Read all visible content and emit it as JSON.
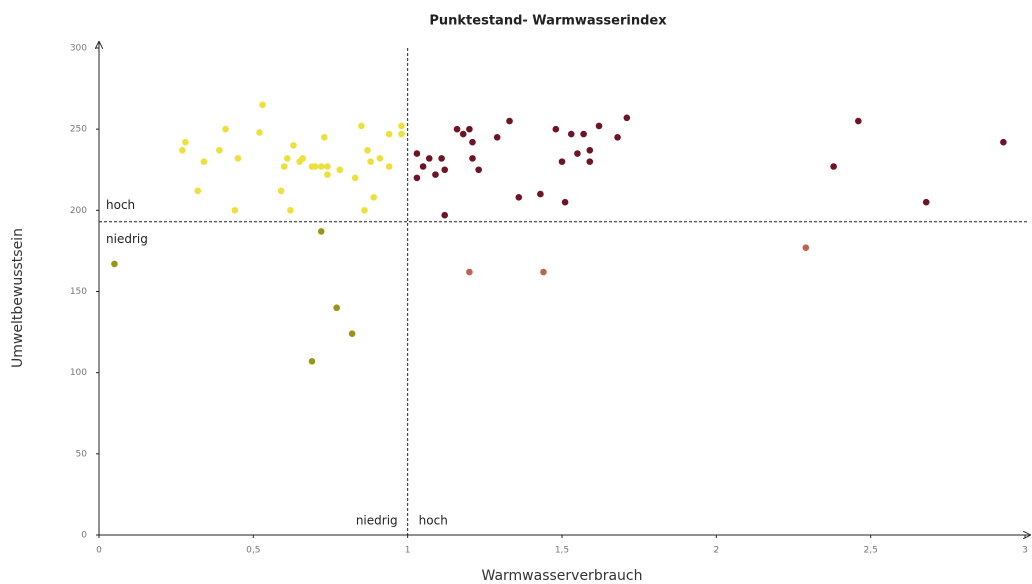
{
  "chart_data": {
    "type": "scatter",
    "title": "Punktestand- Warmwasserindex",
    "x_label": "Warmwasserverbrauch",
    "y_label": "Umweltbewusstsein",
    "xlim": [
      0,
      3
    ],
    "ylim": [
      0,
      300
    ],
    "xticks": [
      0,
      {
        "value": 0.5,
        "label": "0,5"
      },
      1,
      {
        "value": 1.5,
        "label": "1,5"
      },
      2,
      {
        "value": 2.5,
        "label": "2,5"
      },
      3
    ],
    "yticks": [
      0,
      50,
      100,
      150,
      200,
      250,
      300
    ],
    "reference_x": 1,
    "reference_y": 193,
    "quadrant_labels": {
      "upper": "hoch",
      "lower": "niedrig",
      "left": "niedrig",
      "right": "hoch"
    },
    "series": [
      {
        "color": "#ede03a",
        "x": [
          0.27,
          0.28,
          0.32,
          0.34,
          0.39,
          0.41,
          0.44,
          0.45,
          0.52,
          0.53,
          0.59,
          0.6,
          0.61,
          0.62,
          0.63,
          0.65,
          0.66,
          0.69,
          0.7,
          0.72,
          0.73,
          0.74,
          0.74,
          0.78,
          0.83,
          0.85,
          0.86,
          0.87,
          0.88,
          0.89,
          0.91,
          0.94,
          0.94,
          0.98,
          0.98
        ],
        "values": [
          237,
          242,
          212,
          230,
          237,
          250,
          200,
          232,
          248,
          265,
          212,
          227,
          232,
          200,
          240,
          230,
          232,
          227,
          227,
          227,
          245,
          227,
          222,
          225,
          220,
          252,
          200,
          237,
          230,
          208,
          232,
          247,
          227,
          252,
          247
        ]
      },
      {
        "color": "#9a9418",
        "x": [
          0.05,
          0.72,
          0.77,
          0.82,
          0.69
        ],
        "values": [
          167,
          187,
          140,
          124,
          107
        ]
      },
      {
        "color": "#6e1424",
        "x": [
          1.03,
          1.03,
          1.05,
          1.07,
          1.09,
          1.11,
          1.12,
          1.12,
          1.16,
          1.18,
          1.2,
          1.21,
          1.21,
          1.23,
          1.29,
          1.33,
          1.36,
          1.43,
          1.48,
          1.5,
          1.51,
          1.53,
          1.55,
          1.57,
          1.59,
          1.59,
          1.62,
          1.68,
          1.71,
          2.38,
          2.46,
          2.68,
          2.93
        ],
        "values": [
          235,
          220,
          227,
          232,
          222,
          232,
          225,
          197,
          250,
          247,
          250,
          242,
          232,
          225,
          245,
          255,
          208,
          210,
          250,
          230,
          205,
          247,
          235,
          247,
          237,
          230,
          252,
          245,
          257,
          227,
          255,
          205,
          242
        ]
      },
      {
        "color": "#c06250",
        "x": [
          1.2,
          1.44,
          2.29
        ],
        "values": [
          162,
          162,
          177
        ]
      }
    ]
  }
}
